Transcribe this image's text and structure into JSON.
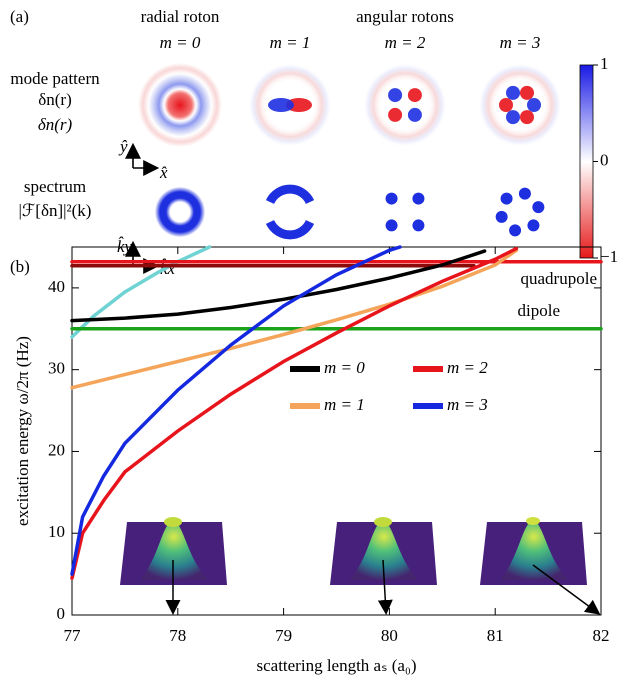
{
  "panel_a": {
    "label": "(a)",
    "group_titles": [
      "radial roton",
      "angular rotons"
    ],
    "modes": [
      "m = 0",
      "m = 1",
      "m = 2",
      "m = 3"
    ],
    "row_labels": [
      [
        "mode pattern",
        "δn(r)"
      ],
      [
        "spectrum",
        "|ℱ[δn]|²(k)"
      ]
    ],
    "axis_hints": [
      [
        "ŷ",
        "x̂"
      ],
      [
        "k̂y",
        "k̂x"
      ]
    ],
    "colorbar": {
      "ticks": [
        1,
        0,
        {
          "value": -1,
          "label": "−1"
        }
      ],
      "lim": [
        -1,
        1
      ]
    }
  },
  "chart_data": {
    "type": "line",
    "panel_label": "(b)",
    "x_label": "scattering length aₛ (a₀)",
    "y_label": "excitation energy ω/2π (Hz)",
    "xlim": [
      77,
      82
    ],
    "ylim": [
      0,
      45
    ],
    "xticks": [
      77,
      78,
      79,
      80,
      81,
      82
    ],
    "yticks": [
      0,
      10,
      20,
      30,
      40
    ],
    "annotations": [
      {
        "text": "quadrupole",
        "color": "#e8141c"
      },
      {
        "text": "dipole",
        "color": "#1aa31a"
      }
    ],
    "series": [
      {
        "color": "#6fd3d3",
        "x": [
          77.0,
          77.2,
          77.5,
          77.8,
          78.0,
          78.3
        ],
        "values": [
          34.0,
          36.5,
          39.5,
          41.8,
          43.2,
          45.0
        ]
      },
      {
        "color": "#8b0a0a",
        "x": [
          77.0,
          80.8
        ],
        "values": [
          42.7,
          42.7
        ]
      },
      {
        "color": "#e8141c",
        "x": [
          77.0,
          82.0
        ],
        "values": [
          43.2,
          43.2
        ]
      },
      {
        "color": "#1aa31a",
        "x": [
          77.0,
          82.0
        ],
        "values": [
          35.0,
          35.0
        ]
      },
      {
        "name": "m = 0",
        "color": "#000000",
        "x": [
          77.0,
          77.5,
          78.0,
          78.5,
          79.0,
          79.5,
          80.0,
          80.5,
          80.9
        ],
        "values": [
          36.0,
          36.3,
          36.8,
          37.6,
          38.6,
          39.8,
          41.2,
          42.8,
          44.5
        ]
      },
      {
        "name": "m = 1",
        "color": "#f5a55a",
        "x": [
          77.0,
          77.5,
          78.0,
          78.5,
          79.0,
          79.5,
          80.0,
          80.5,
          81.0,
          81.2
        ],
        "values": [
          27.8,
          29.4,
          31.0,
          32.6,
          34.3,
          36.1,
          38.0,
          40.2,
          42.8,
          44.6
        ]
      },
      {
        "name": "m = 2",
        "color": "#e8141c",
        "x": [
          77.0,
          77.1,
          77.3,
          77.5,
          78.0,
          78.5,
          79.0,
          79.5,
          80.0,
          80.5,
          81.0,
          81.2
        ],
        "values": [
          4.5,
          10.0,
          14.0,
          17.5,
          22.5,
          27.0,
          31.0,
          34.5,
          37.8,
          40.8,
          43.5,
          44.8
        ]
      },
      {
        "name": "m = 3",
        "color": "#1428e0",
        "x": [
          77.0,
          77.1,
          77.3,
          77.5,
          78.0,
          78.5,
          79.0,
          79.5,
          80.0,
          80.1
        ],
        "values": [
          5.0,
          12.0,
          17.0,
          21.0,
          27.5,
          33.0,
          37.8,
          41.6,
          44.6,
          45.0
        ]
      }
    ]
  }
}
